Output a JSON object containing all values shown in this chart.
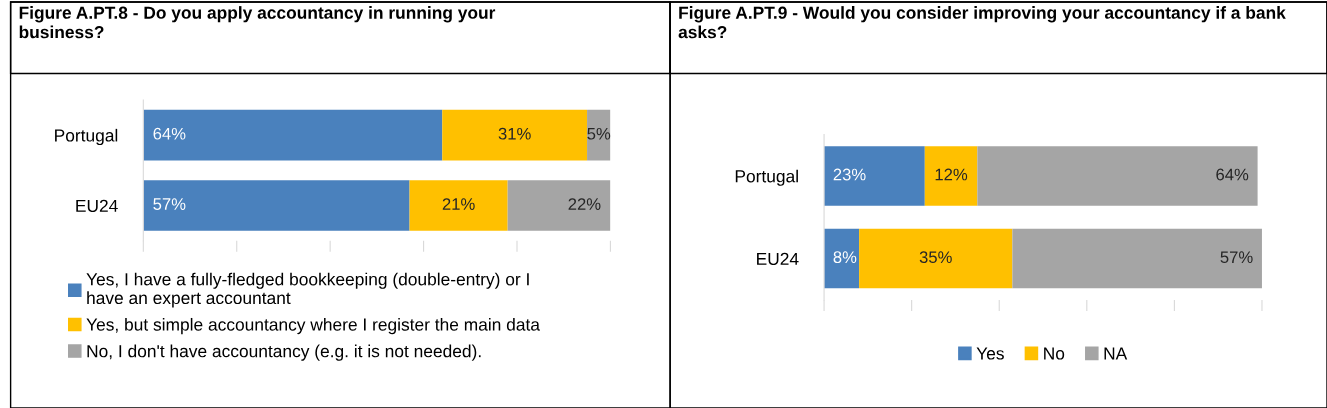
{
  "chart_data": [
    {
      "type": "bar",
      "orientation": "horizontal",
      "stacked": true,
      "title": "Figure A.PT.8 - Do you apply accountancy in running your business?",
      "categories": [
        "Portugal",
        "EU24"
      ],
      "series": [
        {
          "name": "Yes, I have a fully-fledged bookkeeping (double-entry) or I have an expert accountant",
          "color": "#4a81bd",
          "values": [
            64,
            57
          ],
          "value_labels": [
            "64%",
            "57%"
          ]
        },
        {
          "name": "Yes, but simple accountancy where I register the main data",
          "color": "#ffc000",
          "values": [
            31,
            21
          ],
          "value_labels": [
            "31%",
            "21%"
          ]
        },
        {
          "name": "No, I don't have accountancy (e.g. it is not needed).",
          "color": "#a5a5a5",
          "values": [
            5,
            22
          ],
          "value_labels": [
            "5%",
            "22%"
          ]
        }
      ],
      "tick_labels": "y",
      "legend": "bottom left"
    },
    {
      "type": "bar",
      "orientation": "horizontal",
      "stacked": true,
      "title": "Figure A.PT.9 - Would you consider improving your accountancy if a bank asks?",
      "categories": [
        "Portugal",
        "EU24"
      ],
      "series": [
        {
          "name": "Yes",
          "color": "#4a81bd",
          "values": [
            23,
            8
          ],
          "value_labels": [
            "23%",
            "8%"
          ]
        },
        {
          "name": "No",
          "color": "#ffc000",
          "values": [
            12,
            35
          ],
          "value_labels": [
            "12%",
            "35%"
          ]
        },
        {
          "name": "NA",
          "color": "#a5a5a5",
          "values": [
            64,
            57
          ],
          "value_labels": [
            "64%",
            "57%"
          ]
        }
      ],
      "tick_labels": "y",
      "legend": "bottom"
    }
  ]
}
